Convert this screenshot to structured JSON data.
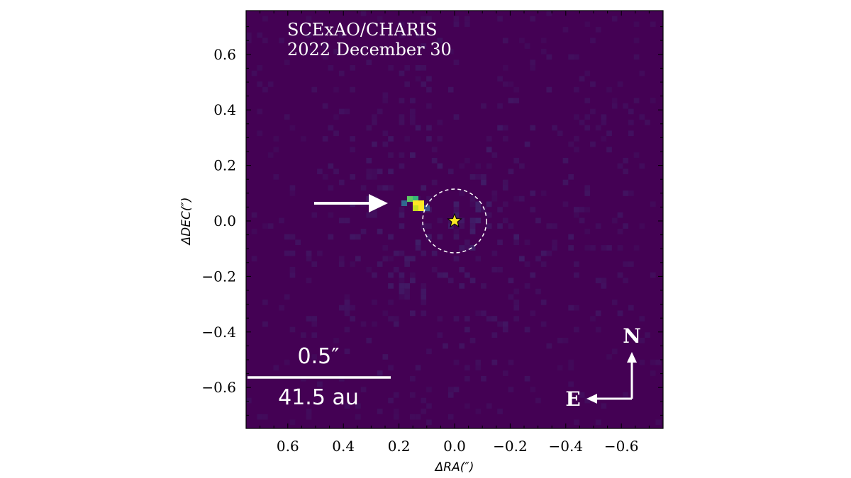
{
  "figure": {
    "title_line1": "SCExAO/CHARIS",
    "title_line2": "2022 December 30",
    "background_color": "#440154",
    "highlight_colors": [
      "#fde725",
      "#5ec962",
      "#3b528b"
    ],
    "star_color": "#fde725"
  },
  "axes": {
    "x_label": "ΔRA(″)",
    "y_label": "ΔDEC(″)",
    "x_range": [
      0.75,
      -0.75
    ],
    "y_range": [
      -0.75,
      0.75
    ],
    "x_ticks": [
      "0.6",
      "0.4",
      "0.2",
      "0.0",
      "−0.2",
      "−0.4",
      "−0.6"
    ],
    "y_ticks": [
      "0.6",
      "0.4",
      "0.2",
      "0.0",
      "−0.2",
      "−0.4",
      "−0.6"
    ]
  },
  "scale_bar": {
    "angle_label": "0.5″",
    "distance_label": "41.5 au"
  },
  "compass": {
    "north_label": "N",
    "east_label": "E"
  }
}
